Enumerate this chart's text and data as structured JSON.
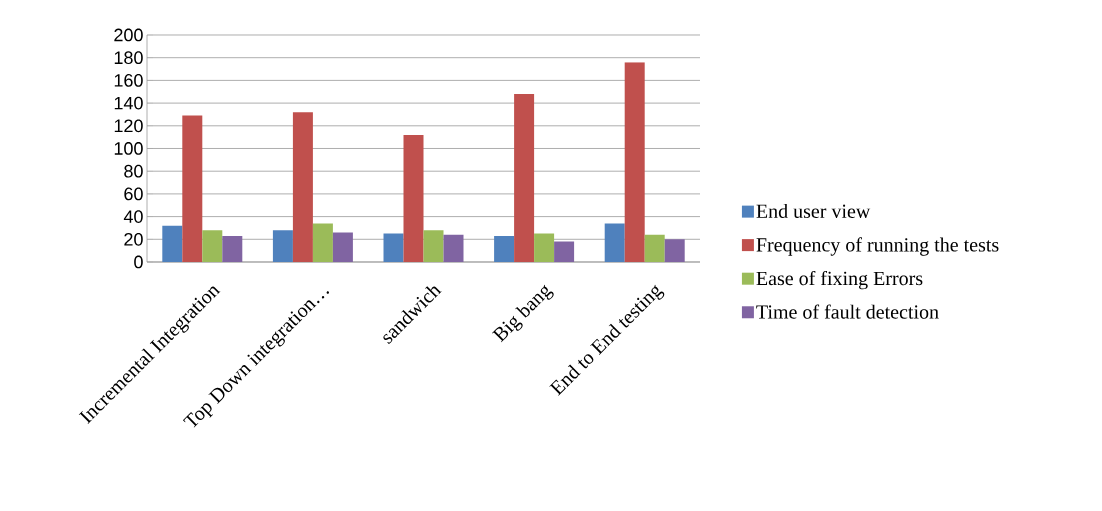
{
  "chart_data": {
    "type": "bar",
    "categories": [
      "Incremental Integration",
      "Top Down integration…",
      "sandwich",
      "Big bang",
      "End to End testing"
    ],
    "series": [
      {
        "name": "End user view",
        "color": "#4f81bd",
        "values": [
          32,
          28,
          25,
          23,
          34
        ]
      },
      {
        "name": "Frequency of running the tests",
        "color": "#c0504d",
        "values": [
          129,
          132,
          112,
          148,
          176
        ]
      },
      {
        "name": "Ease of fixing Errors",
        "color": "#9bbb59",
        "values": [
          28,
          34,
          28,
          25,
          24
        ]
      },
      {
        "name": "Time of fault detection",
        "color": "#8064a2",
        "values": [
          23,
          26,
          24,
          18,
          20
        ]
      }
    ],
    "ylim": [
      0,
      200
    ],
    "yticks": [
      0,
      20,
      40,
      60,
      80,
      100,
      120,
      140,
      160,
      180,
      200
    ],
    "grid": "y",
    "legend": "right"
  }
}
